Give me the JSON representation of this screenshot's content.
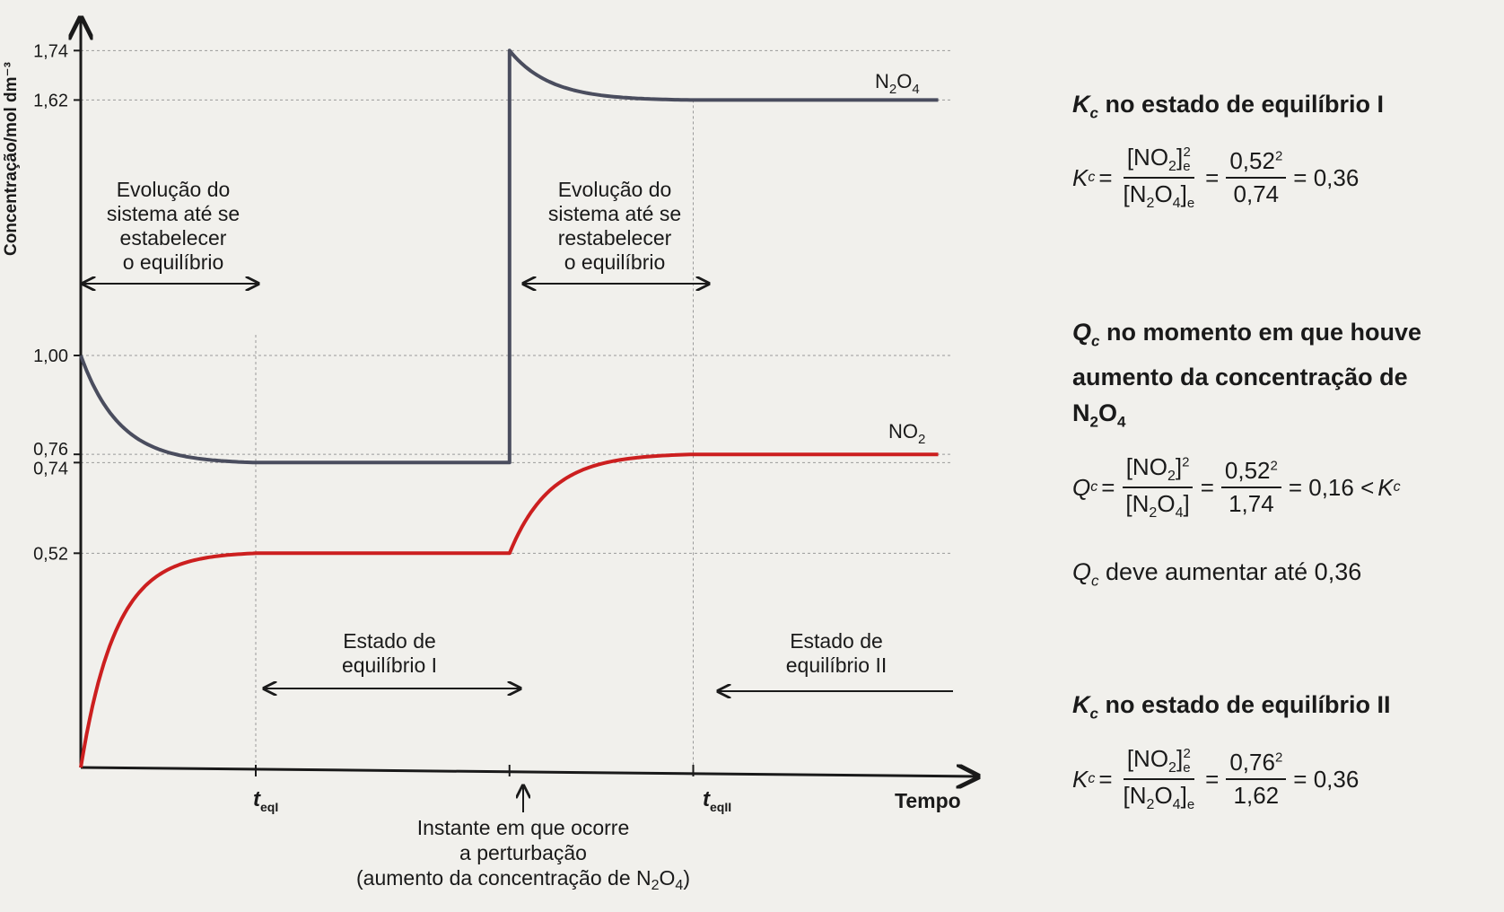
{
  "chart_data": {
    "type": "line",
    "ylabel": "Concentração/mol dm⁻³",
    "xlabel": "Tempo",
    "y_ticks": [
      {
        "value": 1.74,
        "label": "1,74"
      },
      {
        "value": 1.62,
        "label": "1,62"
      },
      {
        "value": 1.0,
        "label": "1,00"
      },
      {
        "value": 0.76,
        "label": "0,76"
      },
      {
        "value": 0.74,
        "label": "0,74"
      },
      {
        "value": 0.52,
        "label": "0,52"
      }
    ],
    "ylim": [
      0,
      1.9
    ],
    "x_markers": [
      {
        "id": "t_eqI",
        "base": "t",
        "sub": "eqI",
        "x": 1
      },
      {
        "id": "perturbation",
        "x": 2.45
      },
      {
        "id": "t_eqII",
        "base": "t",
        "sub": "eqII",
        "x": 3.5
      }
    ],
    "series": [
      {
        "name_base": "N",
        "name_sub1": "2",
        "name_mid": "O",
        "name_sub2": "4",
        "color": "#4a4d5e",
        "segments": [
          {
            "t0": 0,
            "t1": 1,
            "c0": 1.0,
            "c1": 0.74
          },
          {
            "t0": 1,
            "t1": 2.45,
            "c0": 0.74,
            "c1": 0.74
          },
          {
            "t0": 2.45,
            "t1": 3.5,
            "c0": 1.74,
            "c1": 1.62
          },
          {
            "t0": 3.5,
            "t1": 4.9,
            "c0": 1.62,
            "c1": 1.62
          }
        ]
      },
      {
        "name_base": "NO",
        "name_sub1": "2",
        "color": "#cc1f1f",
        "segments": [
          {
            "t0": 0,
            "t1": 1,
            "c0": 0,
            "c1": 0.52
          },
          {
            "t0": 1,
            "t1": 2.45,
            "c0": 0.52,
            "c1": 0.52
          },
          {
            "t0": 2.45,
            "t1": 3.5,
            "c0": 0.52,
            "c1": 0.76
          },
          {
            "t0": 3.5,
            "t1": 4.9,
            "c0": 0.76,
            "c1": 0.76
          }
        ]
      }
    ],
    "annotations": {
      "evol1": [
        "Evolução do",
        "sistema até se",
        "estabelecer",
        "o equilíbrio"
      ],
      "evol2": [
        "Evolução do",
        "sistema até se",
        "restabelecer",
        "o equilíbrio"
      ],
      "state1": [
        "Estado de",
        "equilíbrio I"
      ],
      "state2": [
        "Estado de",
        "equilíbrio II"
      ],
      "perturb_line1": "Instante em que ocorre",
      "perturb_line2": "a perturbação",
      "perturb_line3_pre": "(aumento da concentração de N",
      "perturb_line3_sub1": "2",
      "perturb_line3_mid": "O",
      "perturb_line3_sub2": "4",
      "perturb_line3_post": ")"
    }
  },
  "panel": {
    "kc1_title": "no estado de equilíbrio I",
    "kc1_sym": "K",
    "kc1_sub": "c",
    "kc1_num_val": "0,52",
    "kc1_den_val": "0,74",
    "kc1_result": "= 0,36",
    "qc_title_1": "no momento em que houve",
    "qc_title_2": "aumento da concentração de",
    "qc_title_3_base": "N",
    "qc_title_3_sub1": "2",
    "qc_title_3_mid": "O",
    "qc_title_3_sub2": "4",
    "qc_sym": "Q",
    "qc_sub": "c",
    "qc_num_val": "0,52",
    "qc_den_val": "1,74",
    "qc_result": "= 0,16 <",
    "qc_note": "deve aumentar até 0,36",
    "kc2_title": "no estado de equilíbrio II",
    "kc2_num_val": "0,76",
    "kc2_den_val": "1,62",
    "kc2_result": "= 0,36",
    "exp": "2",
    "sub_e": "e"
  }
}
